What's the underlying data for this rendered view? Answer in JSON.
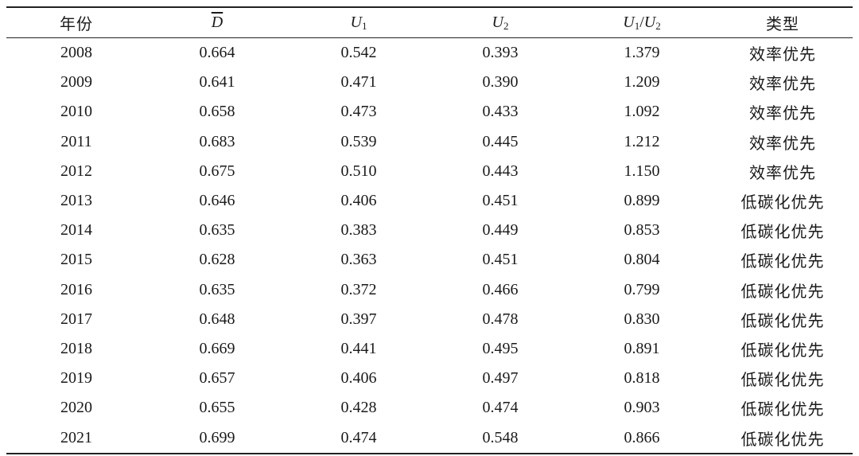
{
  "table": {
    "headers": {
      "year": "年份",
      "d_symbol": "D",
      "u1_symbol": "U",
      "u1_sub": "1",
      "u2_symbol": "U",
      "u2_sub": "2",
      "ratio_num_symbol": "U",
      "ratio_num_sub": "1",
      "ratio_sep": "/",
      "ratio_den_symbol": "U",
      "ratio_den_sub": "2",
      "type": "类型"
    },
    "rows": [
      {
        "year": "2008",
        "d": "0.664",
        "u1": "0.542",
        "u2": "0.393",
        "ratio": "1.379",
        "type": "效率优先"
      },
      {
        "year": "2009",
        "d": "0.641",
        "u1": "0.471",
        "u2": "0.390",
        "ratio": "1.209",
        "type": "效率优先"
      },
      {
        "year": "2010",
        "d": "0.658",
        "u1": "0.473",
        "u2": "0.433",
        "ratio": "1.092",
        "type": "效率优先"
      },
      {
        "year": "2011",
        "d": "0.683",
        "u1": "0.539",
        "u2": "0.445",
        "ratio": "1.212",
        "type": "效率优先"
      },
      {
        "year": "2012",
        "d": "0.675",
        "u1": "0.510",
        "u2": "0.443",
        "ratio": "1.150",
        "type": "效率优先"
      },
      {
        "year": "2013",
        "d": "0.646",
        "u1": "0.406",
        "u2": "0.451",
        "ratio": "0.899",
        "type": "低碳化优先"
      },
      {
        "year": "2014",
        "d": "0.635",
        "u1": "0.383",
        "u2": "0.449",
        "ratio": "0.853",
        "type": "低碳化优先"
      },
      {
        "year": "2015",
        "d": "0.628",
        "u1": "0.363",
        "u2": "0.451",
        "ratio": "0.804",
        "type": "低碳化优先"
      },
      {
        "year": "2016",
        "d": "0.635",
        "u1": "0.372",
        "u2": "0.466",
        "ratio": "0.799",
        "type": "低碳化优先"
      },
      {
        "year": "2017",
        "d": "0.648",
        "u1": "0.397",
        "u2": "0.478",
        "ratio": "0.830",
        "type": "低碳化优先"
      },
      {
        "year": "2018",
        "d": "0.669",
        "u1": "0.441",
        "u2": "0.495",
        "ratio": "0.891",
        "type": "低碳化优先"
      },
      {
        "year": "2019",
        "d": "0.657",
        "u1": "0.406",
        "u2": "0.497",
        "ratio": "0.818",
        "type": "低碳化优先"
      },
      {
        "year": "2020",
        "d": "0.655",
        "u1": "0.428",
        "u2": "0.474",
        "ratio": "0.903",
        "type": "低碳化优先"
      },
      {
        "year": "2021",
        "d": "0.699",
        "u1": "0.474",
        "u2": "0.548",
        "ratio": "0.866",
        "type": "低碳化优先"
      }
    ]
  }
}
